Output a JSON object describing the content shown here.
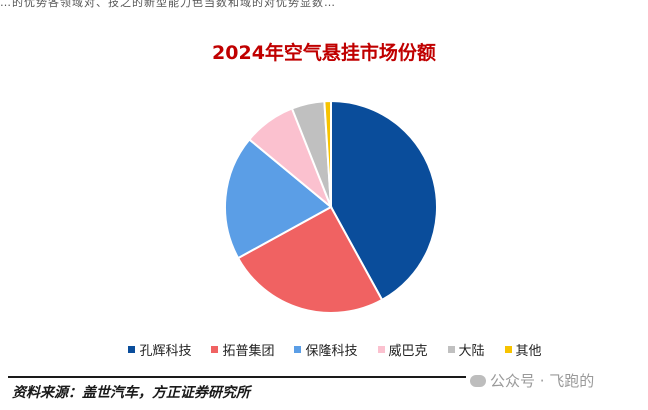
{
  "header_strip": "…的优势各领域对、技之的新型能力色当数和域的对优势显数…",
  "chart_data": {
    "type": "pie",
    "title": "2024年空气悬挂市场份额",
    "start_angle_deg": 0,
    "direction": "clockwise",
    "categories": [
      "孔辉科技",
      "拓普集团",
      "保隆科技",
      "威巴克",
      "大陆",
      "其他"
    ],
    "values": [
      42,
      25,
      19,
      8,
      5,
      1
    ],
    "colors": [
      "#0a4d9b",
      "#f06262",
      "#5b9ee6",
      "#fbc1cf",
      "#c0c0c0",
      "#f7c300"
    ],
    "legend_position": "bottom"
  },
  "source_text": "资料来源：盖世汽车，方正证券研究所",
  "watermark_text": "公众号 · 飞跑的"
}
